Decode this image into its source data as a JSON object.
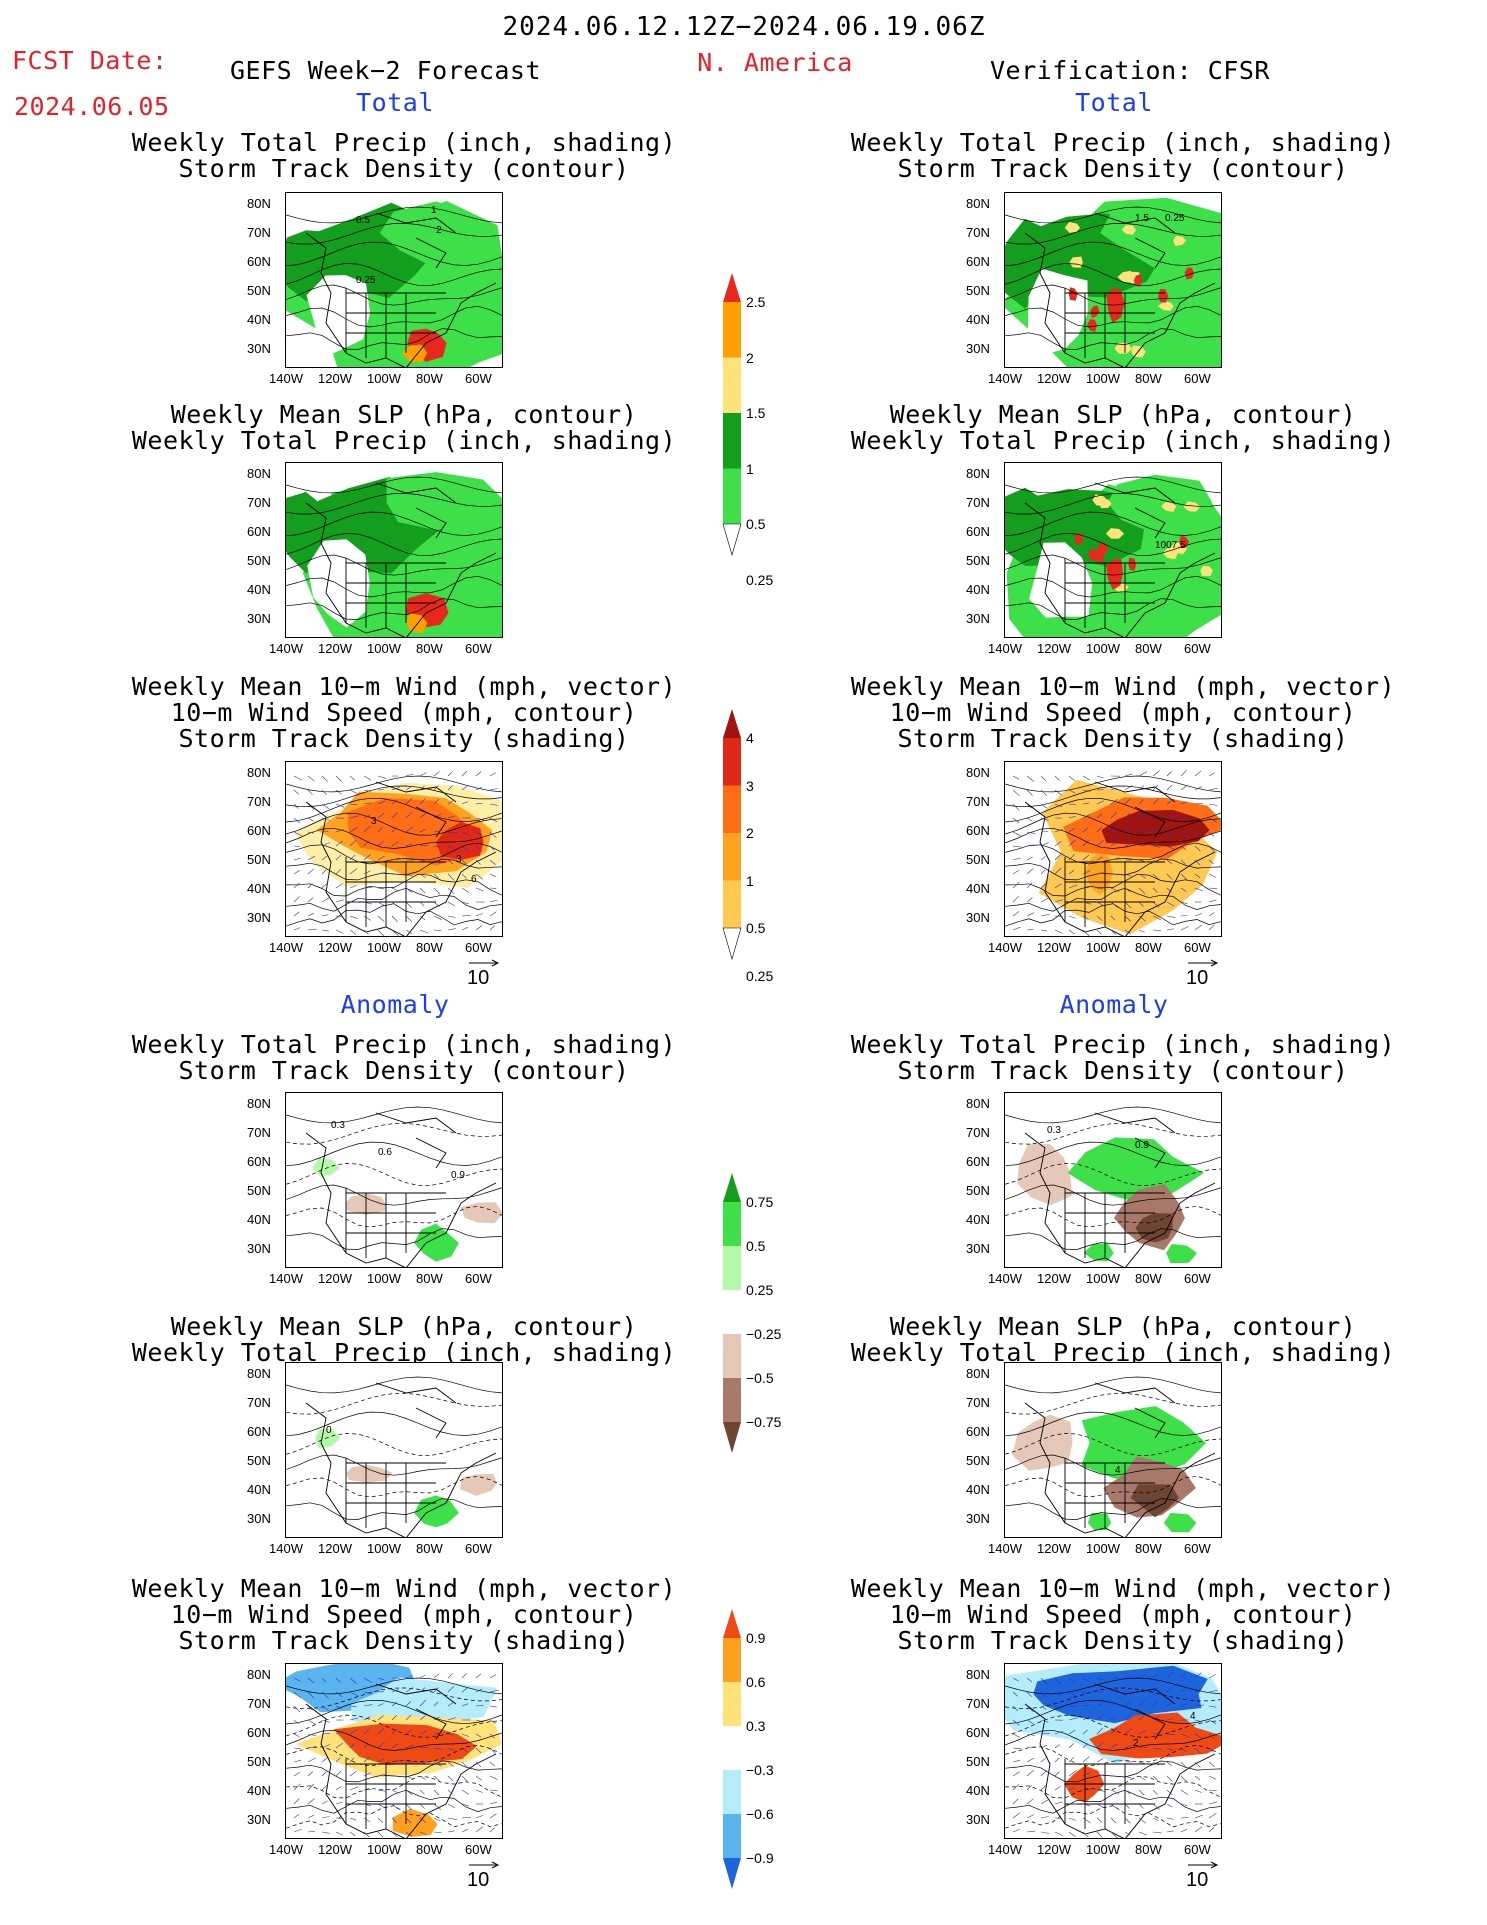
{
  "header": {
    "period": "2024.06.12.12Z−2024.06.19.06Z",
    "fcst_label": "FCST Date:",
    "fcst_date": "2024.06.05",
    "left_title": "GEFS Week−2 Forecast",
    "region": "N. America",
    "right_title": "Verification: CFSR"
  },
  "sections": {
    "total": "Total",
    "anomaly": "Anomaly"
  },
  "panel_titles": {
    "precip_storm": [
      "Weekly Total Precip (inch, shading)",
      "Storm Track Density (contour)"
    ],
    "slp_precip": [
      "Weekly Mean SLP (hPa, contour)",
      "Weekly Total Precip (inch, shading)"
    ],
    "wind_storm": [
      "Weekly Mean 10−m Wind (mph, vector)",
      "10−m Wind Speed (mph, contour)",
      "Storm Track Density (shading)"
    ]
  },
  "axes": {
    "lat_labels": [
      "80N",
      "70N",
      "60N",
      "50N",
      "40N",
      "30N"
    ],
    "lon_labels": [
      "140W",
      "120W",
      "100W",
      "80W",
      "60W"
    ]
  },
  "vector_reference": "10",
  "colorbars": {
    "total_precip": {
      "labels": [
        "2.5",
        "2",
        "1.5",
        "1",
        "0.5",
        "0.25"
      ],
      "colors": [
        "#e8281c",
        "#ffa000",
        "#ffe27a",
        "#149e1e",
        "#3ee04a",
        "#b4f8aa"
      ]
    },
    "total_storm": {
      "labels": [
        "4",
        "3",
        "2",
        "1",
        "0.5",
        "0.25"
      ],
      "colors": [
        "#a01410",
        "#e02818",
        "#ff6e14",
        "#ffa21e",
        "#ffc850",
        "#ffefa6"
      ]
    },
    "anom_precip": {
      "labels": [
        "0.75",
        "0.5",
        "0.25",
        "−0.25",
        "−0.5",
        "−0.75"
      ],
      "colors": [
        "#149e1e",
        "#3ee04a",
        "#b4f8aa",
        "#ffffff",
        "#e6c8b8",
        "#a8786a",
        "#6e4432"
      ]
    },
    "anom_storm": {
      "labels": [
        "0.9",
        "0.6",
        "0.3",
        "−0.3",
        "−0.6",
        "−0.9"
      ],
      "colors": [
        "#f04a14",
        "#ffa01e",
        "#ffe27a",
        "#ffffff",
        "#b4ecfa",
        "#5ab4f0",
        "#1e64dc"
      ]
    }
  },
  "contour_labels": {
    "L1": [
      "0.5",
      "1",
      "2",
      "0.25"
    ],
    "R1": [
      "1.5",
      "0.25"
    ],
    "R2": [
      "1007.5"
    ],
    "L3": [
      "3",
      "3",
      "6"
    ],
    "L4": [
      "0.3",
      "0.6",
      "0.9"
    ],
    "R4": [
      "0.3",
      "0.9"
    ],
    "L5": [
      "0"
    ],
    "R5": [
      "4"
    ],
    "R6": [
      "4",
      "2"
    ]
  }
}
